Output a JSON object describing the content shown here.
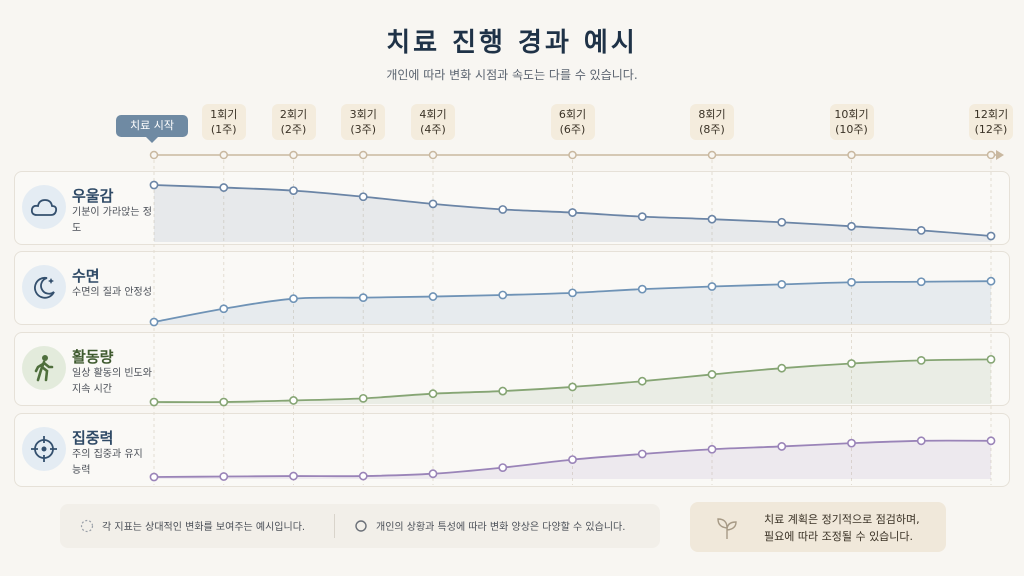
{
  "title": "치료 진행 경과 예시",
  "subtitle": "개인에 따라 변화 시점과 속도는 다를 수 있습니다.",
  "start_label": "치료 시작",
  "timeline": [
    {
      "line1": "1회기",
      "line2": "(1주)"
    },
    {
      "line1": "2회기",
      "line2": "(2주)"
    },
    {
      "line1": "3회기",
      "line2": "(3주)"
    },
    {
      "line1": "4회기",
      "line2": "(4주)"
    },
    {
      "line1": "6회기",
      "line2": "(6주)"
    },
    {
      "line1": "8회기",
      "line2": "(8주)"
    },
    {
      "line1": "10회기",
      "line2": "(10주)"
    },
    {
      "line1": "12회기",
      "line2": "(12주)"
    }
  ],
  "metrics": [
    {
      "name": "우울감",
      "desc": "기분이 가라앉는 정도",
      "icon": "cloud-icon"
    },
    {
      "name": "수면",
      "desc": "수면의 질과 안정성",
      "icon": "moon-icon"
    },
    {
      "name": "활동량",
      "desc": "일상 활동의 빈도와 지속 시간",
      "icon": "walking-person-icon"
    },
    {
      "name": "집중력",
      "desc": "주의 집중과 유지 능력",
      "icon": "crosshair-icon"
    }
  ],
  "footnotes": [
    "각 지표는 상대적인 변화를 보여주는 예시입니다.",
    "개인의 상황과 특성에 따라 변화 양상은 다양할 수 있습니다."
  ],
  "callout": {
    "line1": "치료 계획은 정기적으로 점검하며,",
    "line2": "필요에 따라 조정될 수 있습니다.",
    "icon": "sprout-icon"
  },
  "colors": {
    "우울감": "#6b85a6",
    "수면": "#6f93b6",
    "활동량": "#86a574",
    "집중력": "#9a84b8",
    "timeline": "#c9b8a0",
    "start_badge": "#6f8aa3"
  },
  "chart_data": {
    "type": "line",
    "x_unit": "weeks",
    "ylim": [
      0,
      100
    ],
    "series": [
      {
        "name": "우울감",
        "x": [
          0,
          1,
          2,
          3,
          4,
          5,
          6,
          7,
          8,
          9,
          10,
          11,
          12
        ],
        "values": [
          100,
          95,
          89,
          77,
          63,
          52,
          46,
          38,
          33,
          27,
          19,
          11,
          0
        ]
      },
      {
        "name": "수면",
        "x": [
          0,
          1,
          2,
          3,
          4,
          5,
          6,
          7,
          8,
          9,
          10,
          11,
          12
        ],
        "values": [
          0,
          25,
          44,
          46,
          48,
          51,
          55,
          62,
          67,
          71,
          75,
          76,
          77
        ]
      },
      {
        "name": "활동량",
        "x": [
          0,
          1,
          2,
          3,
          4,
          5,
          6,
          7,
          8,
          9,
          10,
          11,
          12
        ],
        "values": [
          0,
          0,
          3,
          7,
          16,
          21,
          29,
          40,
          53,
          65,
          74,
          80,
          82
        ]
      },
      {
        "name": "집중력",
        "x": [
          0,
          1,
          2,
          3,
          4,
          5,
          6,
          7,
          8,
          9,
          10,
          11,
          12
        ],
        "values": [
          0,
          1,
          2,
          2,
          7,
          20,
          37,
          49,
          59,
          65,
          72,
          77,
          77
        ]
      }
    ]
  }
}
